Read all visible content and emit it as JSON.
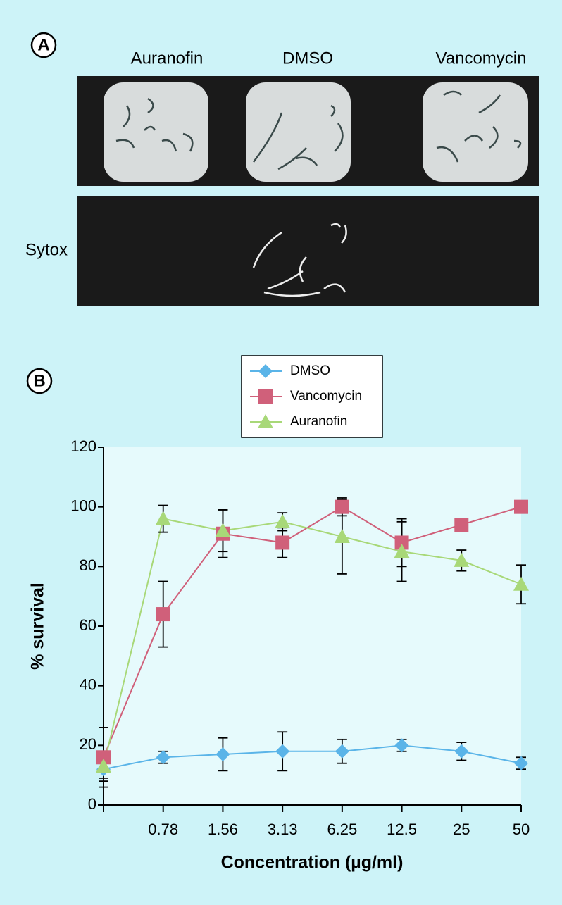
{
  "panel_a": {
    "label": "A",
    "columns": [
      "Auranofin",
      "DMSO",
      "Vancomycin"
    ],
    "row_label": "Sytox"
  },
  "panel_b_label": "B",
  "chart_data": {
    "type": "line",
    "x_label": "Concentration (µg/ml)",
    "y_label": "% survival",
    "categories": [
      null,
      "0.78",
      "1.56",
      "3.13",
      "6.25",
      "12.5",
      "25",
      "50"
    ],
    "series": [
      {
        "name": "DMSO",
        "color": "#5ab4e8",
        "marker": "diamond",
        "values": [
          12,
          16,
          17,
          18,
          18,
          20,
          18,
          14
        ],
        "errors": [
          3,
          2,
          5.5,
          6.5,
          4,
          2,
          3,
          2
        ]
      },
      {
        "name": "Vancomycin",
        "color": "#d0607a",
        "marker": "square",
        "values": [
          16,
          64,
          91,
          88,
          100,
          88,
          94,
          100
        ],
        "errors": [
          10,
          11,
          8,
          5,
          3,
          8,
          null,
          null
        ]
      },
      {
        "name": "Auranofin",
        "color": "#a8d878",
        "marker": "triangle",
        "values": [
          13,
          96,
          92,
          95,
          90,
          85,
          82,
          74
        ],
        "errors": [
          5,
          4.5,
          7,
          3,
          12.5,
          10,
          3.5,
          6.5
        ]
      }
    ],
    "ylim": [
      0,
      120
    ],
    "yticks": [
      0,
      20,
      40,
      60,
      80,
      100,
      120
    ],
    "grid": false,
    "legend": "top"
  }
}
